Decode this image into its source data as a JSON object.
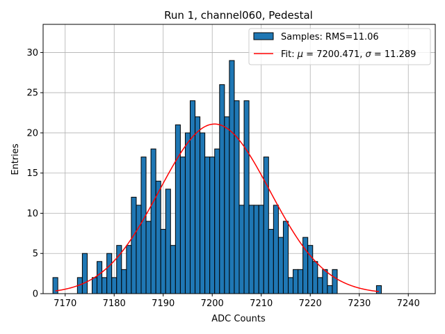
{
  "chart_data": {
    "type": "bar",
    "title": "Run 1, channel060, Pedestal",
    "xlabel": "ADC Counts",
    "ylabel": "Entries",
    "xlim": [
      7165.5,
      7245.5
    ],
    "ylim": [
      0,
      33.5
    ],
    "xticks": [
      7170,
      7180,
      7190,
      7200,
      7210,
      7220,
      7230,
      7240
    ],
    "yticks": [
      0,
      5,
      10,
      15,
      20,
      25,
      30
    ],
    "grid": true,
    "legend_position": "top-right",
    "bar_color": "#1f77b4",
    "bar_edge_color": "#000000",
    "fit_color": "#ff0000",
    "histogram": {
      "name": "Samples: RMS=11.06",
      "bin_centers": [
        7168,
        7169,
        7170,
        7171,
        7172,
        7173,
        7174,
        7175,
        7176,
        7177,
        7178,
        7179,
        7180,
        7181,
        7182,
        7183,
        7184,
        7185,
        7186,
        7187,
        7188,
        7189,
        7190,
        7191,
        7192,
        7193,
        7194,
        7195,
        7196,
        7197,
        7198,
        7199,
        7200,
        7201,
        7202,
        7203,
        7204,
        7205,
        7206,
        7207,
        7208,
        7209,
        7210,
        7211,
        7212,
        7213,
        7214,
        7215,
        7216,
        7217,
        7218,
        7219,
        7220,
        7221,
        7222,
        7223,
        7224,
        7225,
        7226,
        7227,
        7228,
        7229,
        7230,
        7231,
        7232,
        7233,
        7234
      ],
      "counts": [
        2,
        0,
        0,
        0,
        0,
        2,
        5,
        0,
        2,
        4,
        2,
        5,
        2,
        6,
        3,
        6,
        12,
        11,
        17,
        9,
        18,
        14,
        8,
        13,
        6,
        21,
        17,
        20,
        24,
        22,
        20,
        17,
        17,
        18,
        26,
        22,
        29,
        24,
        11,
        24,
        11,
        11,
        11,
        17,
        8,
        11,
        7,
        9,
        2,
        3,
        3,
        7,
        6,
        4,
        2,
        3,
        1,
        3,
        0,
        0,
        0,
        0,
        0,
        0,
        0,
        0,
        1
      ]
    },
    "fit": {
      "label_prefix": "Fit: ",
      "mu_symbol": "μ",
      "mu_text": " = 7200.471, ",
      "sigma_symbol": "σ",
      "sigma_text": " = 11.289",
      "mu": 7200.471,
      "sigma": 11.289,
      "amplitude": 21.1,
      "x_range": [
        7168,
        7234
      ]
    }
  }
}
